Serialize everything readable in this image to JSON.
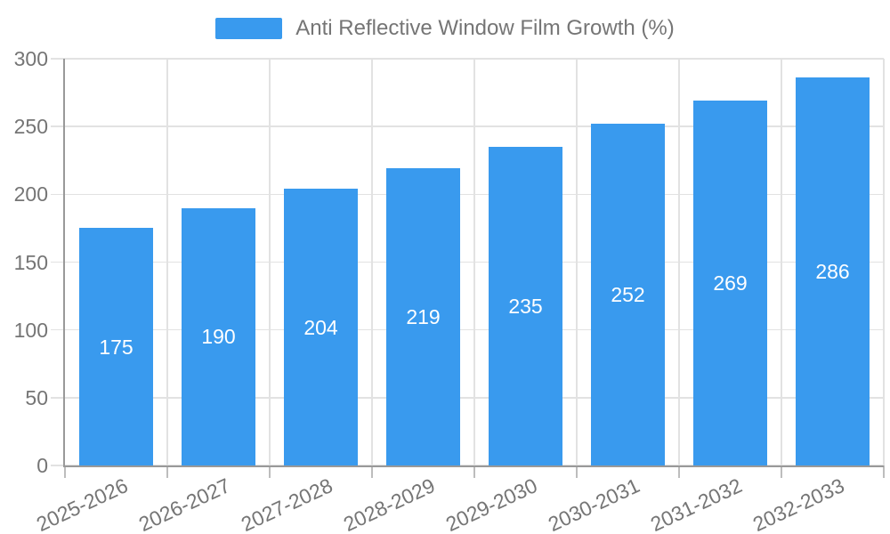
{
  "chart_data": {
    "type": "bar",
    "title": "Anti Reflective Window Film Growth (%)",
    "categories": [
      "2025-2026",
      "2026-2027",
      "2027-2028",
      "2028-2029",
      "2029-2030",
      "2030-2031",
      "2031-2032",
      "2032-2033"
    ],
    "values": [
      175,
      190,
      204,
      219,
      235,
      252,
      269,
      286
    ],
    "xlabel": "",
    "ylabel": "",
    "ylim": [
      0,
      300
    ],
    "yticks": [
      0,
      50,
      100,
      150,
      200,
      250,
      300
    ],
    "grid": true,
    "legend_position": "top",
    "bar_labels_inside": true
  },
  "legend": {
    "label": "Anti Reflective Window Film Growth (%)",
    "swatch_icon": "legend-color-swatch"
  },
  "colors": {
    "bar": "#399aee",
    "grid": "#e2e2e2",
    "axis": "#999999",
    "tick": "#bdbdbd",
    "text": "#757575",
    "value_label": "#ffffff",
    "background": "#ffffff"
  }
}
